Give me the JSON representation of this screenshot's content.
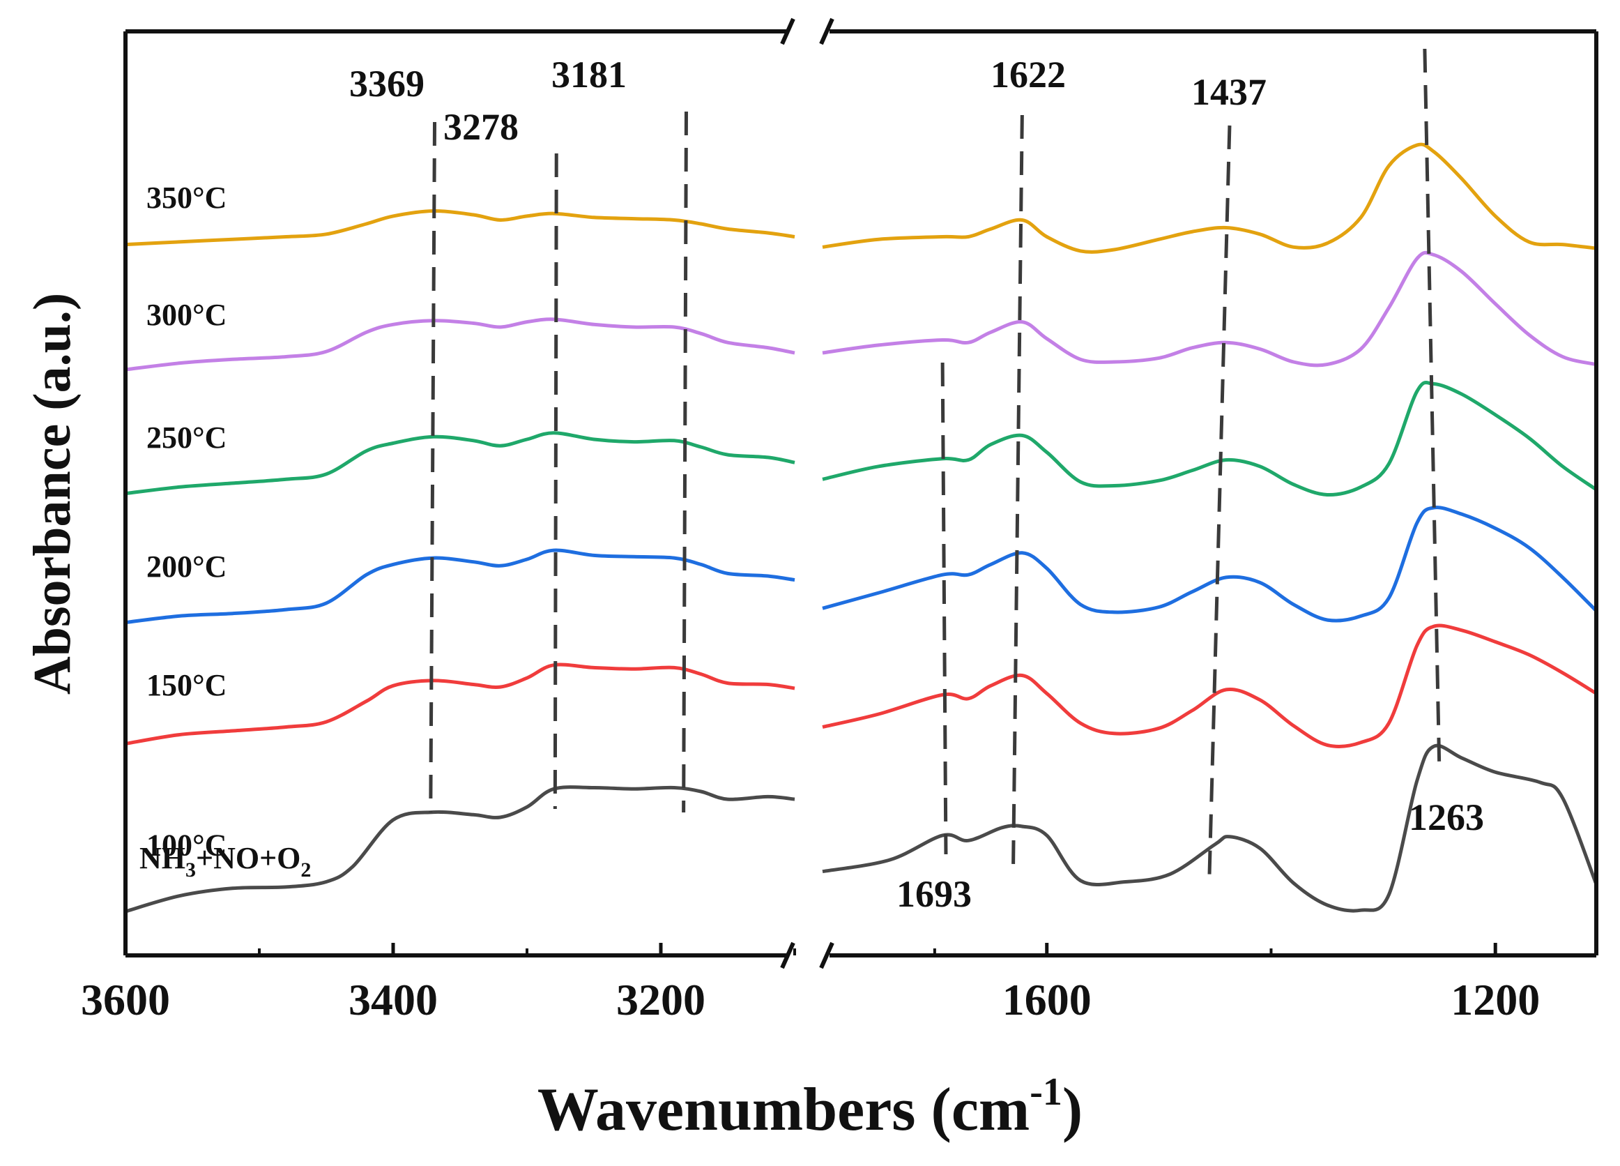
{
  "chart_data": {
    "type": "line",
    "xlabel": "Wavenumbers (cm",
    "xlabel_sup": "-1",
    "xlabel_close": ")",
    "ylabel": "Absorbance (a.u.)",
    "x_axis": {
      "reversed": true,
      "broken": true,
      "segments": [
        [
          3600,
          3100
        ],
        [
          1800,
          1110
        ]
      ],
      "ticks": [
        {
          "value": 3600,
          "label": "3600"
        },
        {
          "value": 3400,
          "label": "3400"
        },
        {
          "value": 3200,
          "label": "3200"
        },
        {
          "value": 1600,
          "label": "1600"
        },
        {
          "value": 1200,
          "label": "1200"
        }
      ],
      "minor_ticks": [
        3500,
        3300,
        3100,
        1700,
        1400
      ]
    },
    "reactant_label": {
      "parts": [
        "NH",
        "3",
        "+NO+O",
        "2"
      ]
    },
    "peak_labels": [
      {
        "text": "3369",
        "x": 3369
      },
      {
        "text": "3278",
        "x": 3278
      },
      {
        "text": "3181",
        "x": 3181
      },
      {
        "text": "1622",
        "x": 1622
      },
      {
        "text": "1437",
        "x": 1437
      },
      {
        "text": "1693",
        "x": 1693
      },
      {
        "text": "1263",
        "x": 1263
      }
    ],
    "series": [
      {
        "name": "100°C",
        "color": "#4a4a4a",
        "points": [
          [
            3600,
            0.7
          ],
          [
            3560,
            1.9
          ],
          [
            3520,
            2.5
          ],
          [
            3480,
            2.6
          ],
          [
            3450,
            3.0
          ],
          [
            3430,
            4.2
          ],
          [
            3400,
            7.8
          ],
          [
            3370,
            8.4
          ],
          [
            3340,
            8.2
          ],
          [
            3320,
            8.0
          ],
          [
            3300,
            8.8
          ],
          [
            3280,
            10.2
          ],
          [
            3250,
            10.3
          ],
          [
            3220,
            10.2
          ],
          [
            3190,
            10.3
          ],
          [
            3170,
            10.0
          ],
          [
            3150,
            9.4
          ],
          [
            3120,
            9.6
          ],
          [
            3100,
            9.4
          ]
        ],
        "points2": [
          [
            1800,
            3.8
          ],
          [
            1740,
            4.7
          ],
          [
            1693,
            6.6
          ],
          [
            1670,
            6.2
          ],
          [
            1640,
            7.2
          ],
          [
            1622,
            7.3
          ],
          [
            1600,
            6.6
          ],
          [
            1570,
            3.1
          ],
          [
            1530,
            3.0
          ],
          [
            1490,
            3.6
          ],
          [
            1450,
            5.9
          ],
          [
            1437,
            6.5
          ],
          [
            1410,
            5.6
          ],
          [
            1380,
            2.9
          ],
          [
            1350,
            1.2
          ],
          [
            1320,
            0.8
          ],
          [
            1295,
            2.0
          ],
          [
            1270,
            10.8
          ],
          [
            1255,
            13.5
          ],
          [
            1230,
            12.6
          ],
          [
            1200,
            11.5
          ],
          [
            1160,
            10.7
          ],
          [
            1140,
            9.5
          ],
          [
            1110,
            2.8
          ]
        ]
      },
      {
        "name": "150°C",
        "color": "#f03c3c",
        "points": [
          [
            3600,
            13.7
          ],
          [
            3560,
            14.4
          ],
          [
            3520,
            14.7
          ],
          [
            3480,
            15.0
          ],
          [
            3450,
            15.4
          ],
          [
            3420,
            17.0
          ],
          [
            3400,
            18.2
          ],
          [
            3370,
            18.6
          ],
          [
            3340,
            18.3
          ],
          [
            3320,
            18.1
          ],
          [
            3300,
            18.8
          ],
          [
            3280,
            19.8
          ],
          [
            3250,
            19.6
          ],
          [
            3220,
            19.5
          ],
          [
            3190,
            19.6
          ],
          [
            3170,
            19.1
          ],
          [
            3150,
            18.4
          ],
          [
            3120,
            18.3
          ],
          [
            3100,
            18.0
          ]
        ],
        "points2": [
          [
            1800,
            15.0
          ],
          [
            1750,
            16.0
          ],
          [
            1693,
            17.5
          ],
          [
            1670,
            17.2
          ],
          [
            1650,
            18.2
          ],
          [
            1622,
            19.0
          ],
          [
            1600,
            17.6
          ],
          [
            1570,
            15.3
          ],
          [
            1540,
            14.5
          ],
          [
            1500,
            14.9
          ],
          [
            1470,
            16.3
          ],
          [
            1440,
            17.9
          ],
          [
            1410,
            17.1
          ],
          [
            1380,
            15.1
          ],
          [
            1350,
            13.6
          ],
          [
            1320,
            13.8
          ],
          [
            1295,
            15.3
          ],
          [
            1270,
            21.3
          ],
          [
            1255,
            22.8
          ],
          [
            1230,
            22.5
          ],
          [
            1200,
            21.6
          ],
          [
            1170,
            20.6
          ],
          [
            1140,
            19.2
          ],
          [
            1110,
            17.6
          ]
        ]
      },
      {
        "name": "200°C",
        "color": "#1e6ee0",
        "points": [
          [
            3600,
            23.1
          ],
          [
            3560,
            23.6
          ],
          [
            3520,
            23.8
          ],
          [
            3480,
            24.1
          ],
          [
            3450,
            24.6
          ],
          [
            3420,
            26.8
          ],
          [
            3400,
            27.6
          ],
          [
            3370,
            28.1
          ],
          [
            3340,
            27.8
          ],
          [
            3320,
            27.5
          ],
          [
            3300,
            28.0
          ],
          [
            3280,
            28.7
          ],
          [
            3250,
            28.3
          ],
          [
            3220,
            28.2
          ],
          [
            3190,
            28.1
          ],
          [
            3170,
            27.6
          ],
          [
            3150,
            26.9
          ],
          [
            3120,
            26.7
          ],
          [
            3100,
            26.4
          ]
        ],
        "points2": [
          [
            1800,
            24.2
          ],
          [
            1750,
            25.4
          ],
          [
            1693,
            26.8
          ],
          [
            1670,
            26.8
          ],
          [
            1650,
            27.6
          ],
          [
            1622,
            28.5
          ],
          [
            1600,
            27.3
          ],
          [
            1570,
            24.5
          ],
          [
            1540,
            23.9
          ],
          [
            1500,
            24.3
          ],
          [
            1470,
            25.5
          ],
          [
            1440,
            26.6
          ],
          [
            1410,
            26.2
          ],
          [
            1380,
            24.5
          ],
          [
            1350,
            23.3
          ],
          [
            1320,
            23.6
          ],
          [
            1295,
            25.0
          ],
          [
            1270,
            30.8
          ],
          [
            1255,
            32.0
          ],
          [
            1230,
            31.5
          ],
          [
            1200,
            30.4
          ],
          [
            1170,
            28.9
          ],
          [
            1140,
            26.6
          ],
          [
            1110,
            24.0
          ]
        ]
      },
      {
        "name": "250°C",
        "color": "#1fa86a",
        "points": [
          [
            3600,
            33.1
          ],
          [
            3560,
            33.6
          ],
          [
            3520,
            33.9
          ],
          [
            3480,
            34.2
          ],
          [
            3450,
            34.6
          ],
          [
            3420,
            36.4
          ],
          [
            3400,
            37.0
          ],
          [
            3370,
            37.5
          ],
          [
            3340,
            37.2
          ],
          [
            3320,
            36.8
          ],
          [
            3300,
            37.3
          ],
          [
            3280,
            37.8
          ],
          [
            3250,
            37.3
          ],
          [
            3220,
            37.1
          ],
          [
            3190,
            37.2
          ],
          [
            3170,
            36.7
          ],
          [
            3150,
            36.1
          ],
          [
            3120,
            35.9
          ],
          [
            3100,
            35.5
          ]
        ],
        "points2": [
          [
            1800,
            34.2
          ],
          [
            1750,
            35.2
          ],
          [
            1693,
            35.8
          ],
          [
            1670,
            35.7
          ],
          [
            1650,
            36.9
          ],
          [
            1622,
            37.6
          ],
          [
            1600,
            36.3
          ],
          [
            1570,
            34.0
          ],
          [
            1540,
            33.7
          ],
          [
            1500,
            34.1
          ],
          [
            1470,
            34.9
          ],
          [
            1440,
            35.7
          ],
          [
            1410,
            35.2
          ],
          [
            1380,
            33.8
          ],
          [
            1350,
            33.0
          ],
          [
            1320,
            33.6
          ],
          [
            1295,
            35.4
          ],
          [
            1270,
            41.0
          ],
          [
            1255,
            41.6
          ],
          [
            1230,
            40.8
          ],
          [
            1200,
            39.2
          ],
          [
            1170,
            37.4
          ],
          [
            1140,
            35.2
          ],
          [
            1110,
            33.4
          ]
        ]
      },
      {
        "name": "300°C",
        "color": "#c380e6",
        "points": [
          [
            3600,
            42.7
          ],
          [
            3560,
            43.2
          ],
          [
            3520,
            43.5
          ],
          [
            3480,
            43.7
          ],
          [
            3450,
            44.1
          ],
          [
            3420,
            45.6
          ],
          [
            3400,
            46.2
          ],
          [
            3370,
            46.5
          ],
          [
            3340,
            46.3
          ],
          [
            3320,
            46.0
          ],
          [
            3300,
            46.4
          ],
          [
            3280,
            46.6
          ],
          [
            3250,
            46.2
          ],
          [
            3220,
            46.0
          ],
          [
            3190,
            46.0
          ],
          [
            3170,
            45.5
          ],
          [
            3150,
            44.8
          ],
          [
            3120,
            44.4
          ],
          [
            3100,
            44.0
          ]
        ],
        "points2": [
          [
            1800,
            44.0
          ],
          [
            1750,
            44.6
          ],
          [
            1693,
            45.0
          ],
          [
            1670,
            44.8
          ],
          [
            1650,
            45.6
          ],
          [
            1622,
            46.4
          ],
          [
            1600,
            45.1
          ],
          [
            1570,
            43.5
          ],
          [
            1540,
            43.3
          ],
          [
            1500,
            43.6
          ],
          [
            1470,
            44.4
          ],
          [
            1440,
            44.8
          ],
          [
            1410,
            44.3
          ],
          [
            1380,
            43.3
          ],
          [
            1350,
            43.1
          ],
          [
            1320,
            44.3
          ],
          [
            1295,
            47.5
          ],
          [
            1270,
            51.3
          ],
          [
            1255,
            51.6
          ],
          [
            1230,
            50.3
          ],
          [
            1200,
            47.8
          ],
          [
            1170,
            45.4
          ],
          [
            1140,
            43.7
          ],
          [
            1110,
            43.1
          ]
        ]
      },
      {
        "name": "350°C",
        "color": "#e3a20f",
        "points": [
          [
            3600,
            52.4
          ],
          [
            3560,
            52.6
          ],
          [
            3520,
            52.8
          ],
          [
            3480,
            53.0
          ],
          [
            3450,
            53.2
          ],
          [
            3420,
            54.0
          ],
          [
            3400,
            54.6
          ],
          [
            3370,
            55.0
          ],
          [
            3340,
            54.7
          ],
          [
            3320,
            54.3
          ],
          [
            3300,
            54.6
          ],
          [
            3280,
            54.8
          ],
          [
            3250,
            54.5
          ],
          [
            3220,
            54.4
          ],
          [
            3190,
            54.3
          ],
          [
            3170,
            54.0
          ],
          [
            3150,
            53.6
          ],
          [
            3120,
            53.3
          ],
          [
            3100,
            53.0
          ]
        ],
        "points2": [
          [
            1800,
            52.2
          ],
          [
            1750,
            52.8
          ],
          [
            1693,
            53.0
          ],
          [
            1670,
            53.0
          ],
          [
            1650,
            53.6
          ],
          [
            1622,
            54.3
          ],
          [
            1600,
            53.0
          ],
          [
            1570,
            51.9
          ],
          [
            1540,
            52.0
          ],
          [
            1500,
            52.8
          ],
          [
            1470,
            53.4
          ],
          [
            1440,
            53.7
          ],
          [
            1410,
            53.2
          ],
          [
            1380,
            52.2
          ],
          [
            1350,
            52.5
          ],
          [
            1320,
            54.5
          ],
          [
            1295,
            58.5
          ],
          [
            1270,
            60.1
          ],
          [
            1255,
            59.6
          ],
          [
            1230,
            57.5
          ],
          [
            1200,
            54.6
          ],
          [
            1170,
            52.6
          ],
          [
            1140,
            52.4
          ],
          [
            1110,
            52.1
          ]
        ]
      }
    ]
  },
  "colors": {
    "axis": "#111111",
    "dash": "#3a3a3a",
    "background": "#ffffff"
  }
}
